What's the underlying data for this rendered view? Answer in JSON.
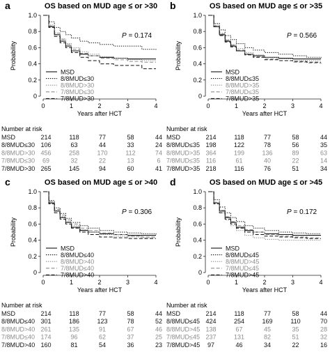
{
  "colors": {
    "black": "#111111",
    "gray": "#8c8c8c",
    "axis": "#222222"
  },
  "chart_data": [
    {
      "type": "line",
      "panel_letter": "a",
      "title": "OS based on MUD age ≤ or >30",
      "xlabel": "Years after HCT",
      "ylabel": "Probability",
      "xlim": [
        0,
        4
      ],
      "ylim": [
        0,
        1.0
      ],
      "xticks": [
        "0",
        "1",
        "2",
        "3",
        "4"
      ],
      "yticks": [
        "0",
        "0.2",
        "0.4",
        "0.6",
        "0.8",
        "1.0"
      ],
      "p_value": "0.174",
      "legend_position": "bottom-right",
      "series": [
        {
          "name": "MSD",
          "style": "solid",
          "color": "black",
          "x": [
            0,
            0.2,
            0.4,
            0.6,
            0.8,
            1.0,
            1.3,
            1.6,
            2.0,
            2.5,
            3.0,
            3.5,
            4.0
          ],
          "y": [
            1.0,
            0.86,
            0.76,
            0.68,
            0.62,
            0.56,
            0.52,
            0.5,
            0.48,
            0.47,
            0.46,
            0.46,
            0.46
          ]
        },
        {
          "name": "8/8MUD≤30",
          "style": "dotted",
          "color": "black",
          "x": [
            0,
            0.2,
            0.4,
            0.6,
            0.8,
            1.0,
            1.3,
            1.6,
            2.0,
            2.5,
            3.0,
            3.5,
            4.0
          ],
          "y": [
            1.0,
            0.92,
            0.85,
            0.8,
            0.76,
            0.72,
            0.68,
            0.66,
            0.64,
            0.62,
            0.62,
            0.58,
            0.57
          ]
        },
        {
          "name": "8/8MUD>30",
          "style": "dotted",
          "color": "gray",
          "x": [
            0,
            0.2,
            0.4,
            0.6,
            0.8,
            1.0,
            1.3,
            1.6,
            2.0,
            2.5,
            3.0,
            3.5,
            4.0
          ],
          "y": [
            1.0,
            0.88,
            0.78,
            0.71,
            0.65,
            0.6,
            0.55,
            0.52,
            0.49,
            0.47,
            0.45,
            0.44,
            0.44
          ]
        },
        {
          "name": "7/8MUD≤30",
          "style": "dashed",
          "color": "gray",
          "x": [
            0,
            0.2,
            0.4,
            0.6,
            0.8,
            1.0,
            1.3,
            1.6,
            2.0,
            2.5,
            3.0,
            3.5,
            4.0
          ],
          "y": [
            1.0,
            0.87,
            0.78,
            0.7,
            0.64,
            0.58,
            0.53,
            0.5,
            0.47,
            0.45,
            0.43,
            0.42,
            0.42
          ]
        },
        {
          "name": "7/8MUD>30",
          "style": "dashed",
          "color": "black",
          "x": [
            0,
            0.2,
            0.4,
            0.6,
            0.8,
            1.0,
            1.3,
            1.6,
            2.0,
            2.5,
            3.0,
            3.5,
            4.0
          ],
          "y": [
            1.0,
            0.85,
            0.74,
            0.66,
            0.6,
            0.54,
            0.48,
            0.44,
            0.4,
            0.38,
            0.38,
            0.34,
            0.34
          ]
        }
      ],
      "risk_table": {
        "heading": "Number at risk",
        "rows": [
          {
            "label": "MSD",
            "color": "black",
            "values": [
              "214",
              "118",
              "77",
              "58",
              "44"
            ]
          },
          {
            "label": "8/8MUD≤30",
            "color": "black",
            "values": [
              "106",
              "63",
              "44",
              "33",
              "24"
            ]
          },
          {
            "label": "8/8MUD>30",
            "color": "gray",
            "values": [
              "456",
              "258",
              "170",
              "112",
              "74"
            ]
          },
          {
            "label": "7/8MUD≤30",
            "color": "gray",
            "values": [
              "69",
              "32",
              "22",
              "13",
              "6"
            ]
          },
          {
            "label": "7/8MUD>30",
            "color": "black",
            "values": [
              "265",
              "145",
              "94",
              "60",
              "41"
            ]
          }
        ]
      }
    },
    {
      "type": "line",
      "panel_letter": "b",
      "title": "OS based on MUD age ≤ or >35",
      "xlabel": "Years after HCT",
      "ylabel": "Probability",
      "xlim": [
        0,
        4
      ],
      "ylim": [
        0,
        1.0
      ],
      "xticks": [
        "0",
        "1",
        "2",
        "3",
        "4"
      ],
      "yticks": [
        "0",
        "0.2",
        "0.4",
        "0.6",
        "0.8",
        "1.0"
      ],
      "p_value": "0.566",
      "legend_position": "bottom-right",
      "series": [
        {
          "name": "MSD",
          "style": "solid",
          "color": "black",
          "x": [
            0,
            0.2,
            0.4,
            0.6,
            0.8,
            1.0,
            1.3,
            1.6,
            2.0,
            2.5,
            3.0,
            3.5,
            4.0
          ],
          "y": [
            1.0,
            0.86,
            0.76,
            0.68,
            0.62,
            0.56,
            0.52,
            0.5,
            0.48,
            0.47,
            0.46,
            0.46,
            0.46
          ]
        },
        {
          "name": "8/8MUD≤35",
          "style": "dotted",
          "color": "black",
          "x": [
            0,
            0.2,
            0.4,
            0.6,
            0.8,
            1.0,
            1.3,
            1.6,
            2.0,
            2.5,
            3.0,
            3.5,
            4.0
          ],
          "y": [
            1.0,
            0.9,
            0.82,
            0.75,
            0.7,
            0.65,
            0.6,
            0.57,
            0.54,
            0.52,
            0.5,
            0.48,
            0.47
          ]
        },
        {
          "name": "8/8MUD>35",
          "style": "dotted",
          "color": "gray",
          "x": [
            0,
            0.2,
            0.4,
            0.6,
            0.8,
            1.0,
            1.3,
            1.6,
            2.0,
            2.5,
            3.0,
            3.5,
            4.0
          ],
          "y": [
            1.0,
            0.88,
            0.78,
            0.7,
            0.64,
            0.59,
            0.54,
            0.51,
            0.48,
            0.46,
            0.44,
            0.44,
            0.44
          ]
        },
        {
          "name": "7/8MUD≤35",
          "style": "dashed",
          "color": "gray",
          "x": [
            0,
            0.2,
            0.4,
            0.6,
            0.8,
            1.0,
            1.3,
            1.6,
            2.0,
            2.5,
            3.0,
            3.5,
            4.0
          ],
          "y": [
            1.0,
            0.87,
            0.77,
            0.69,
            0.63,
            0.57,
            0.52,
            0.49,
            0.46,
            0.44,
            0.42,
            0.41,
            0.4
          ]
        },
        {
          "name": "7/8MUD>35",
          "style": "dashed",
          "color": "black",
          "x": [
            0,
            0.2,
            0.4,
            0.6,
            0.8,
            1.0,
            1.3,
            1.6,
            2.0,
            2.5,
            3.0,
            3.5,
            4.0
          ],
          "y": [
            1.0,
            0.86,
            0.75,
            0.67,
            0.61,
            0.56,
            0.51,
            0.48,
            0.45,
            0.44,
            0.43,
            0.42,
            0.42
          ]
        }
      ],
      "risk_table": {
        "heading": "Number at risk",
        "rows": [
          {
            "label": "MSD",
            "color": "black",
            "values": [
              "214",
              "118",
              "77",
              "58",
              "44"
            ]
          },
          {
            "label": "8/8MUD≤35",
            "color": "black",
            "values": [
              "198",
              "122",
              "78",
              "56",
              "35"
            ]
          },
          {
            "label": "8/8MUD>35",
            "color": "gray",
            "values": [
              "364",
              "199",
              "136",
              "89",
              "63"
            ]
          },
          {
            "label": "7/8MUD≤35",
            "color": "gray",
            "values": [
              "116",
              "61",
              "40",
              "22",
              "14"
            ]
          },
          {
            "label": "7/8MUD>35",
            "color": "black",
            "values": [
              "218",
              "116",
              "76",
              "51",
              "34"
            ]
          }
        ]
      }
    },
    {
      "type": "line",
      "panel_letter": "c",
      "title": "OS based on MUD age ≤ or >40",
      "xlabel": "Years after HCT",
      "ylabel": "Probability",
      "xlim": [
        0,
        4
      ],
      "ylim": [
        0,
        1.0
      ],
      "xticks": [
        "0",
        "1",
        "2",
        "3",
        "4"
      ],
      "yticks": [
        "0",
        "0.2",
        "0.4",
        "0.6",
        "0.8",
        "1.0"
      ],
      "p_value": "0.306",
      "legend_position": "bottom-right",
      "series": [
        {
          "name": "MSD",
          "style": "solid",
          "color": "black",
          "x": [
            0,
            0.2,
            0.4,
            0.6,
            0.8,
            1.0,
            1.3,
            1.6,
            2.0,
            2.5,
            3.0,
            3.5,
            4.0
          ],
          "y": [
            1.0,
            0.86,
            0.76,
            0.68,
            0.62,
            0.56,
            0.52,
            0.5,
            0.48,
            0.47,
            0.46,
            0.46,
            0.46
          ]
        },
        {
          "name": "8/8MUD≤40",
          "style": "dotted",
          "color": "black",
          "x": [
            0,
            0.2,
            0.4,
            0.6,
            0.8,
            1.0,
            1.3,
            1.6,
            2.0,
            2.5,
            3.0,
            3.5,
            4.0
          ],
          "y": [
            1.0,
            0.89,
            0.8,
            0.73,
            0.67,
            0.62,
            0.58,
            0.55,
            0.52,
            0.5,
            0.49,
            0.48,
            0.47
          ]
        },
        {
          "name": "8/8MUD>40",
          "style": "dotted",
          "color": "gray",
          "x": [
            0,
            0.2,
            0.4,
            0.6,
            0.8,
            1.0,
            1.3,
            1.6,
            2.0,
            2.5,
            3.0,
            3.5,
            4.0
          ],
          "y": [
            1.0,
            0.87,
            0.77,
            0.69,
            0.63,
            0.58,
            0.53,
            0.5,
            0.47,
            0.45,
            0.44,
            0.43,
            0.43
          ]
        },
        {
          "name": "7/8MUD≤40",
          "style": "dashed",
          "color": "gray",
          "x": [
            0,
            0.2,
            0.4,
            0.6,
            0.8,
            1.0,
            1.3,
            1.6,
            2.0,
            2.5,
            3.0,
            3.5,
            4.0
          ],
          "y": [
            1.0,
            0.88,
            0.78,
            0.71,
            0.65,
            0.6,
            0.55,
            0.52,
            0.49,
            0.47,
            0.45,
            0.44,
            0.44
          ]
        },
        {
          "name": "7/8MUD>40",
          "style": "dashed",
          "color": "black",
          "x": [
            0,
            0.2,
            0.4,
            0.6,
            0.8,
            1.0,
            1.3,
            1.6,
            2.0,
            2.5,
            3.0,
            3.5,
            4.0
          ],
          "y": [
            1.0,
            0.85,
            0.74,
            0.66,
            0.6,
            0.55,
            0.5,
            0.47,
            0.44,
            0.43,
            0.42,
            0.42,
            0.42
          ]
        }
      ],
      "risk_table": {
        "heading": "Number at risk",
        "rows": [
          {
            "label": "MSD",
            "color": "black",
            "values": [
              "214",
              "118",
              "77",
              "58",
              "44"
            ]
          },
          {
            "label": "8/8MUD≤40",
            "color": "black",
            "values": [
              "301",
              "186",
              "123",
              "78",
              "52"
            ]
          },
          {
            "label": "8/8MUD>40",
            "color": "gray",
            "values": [
              "261",
              "135",
              "91",
              "67",
              "46"
            ]
          },
          {
            "label": "7/8MUD≤40",
            "color": "gray",
            "values": [
              "174",
              "96",
              "62",
              "37",
              "25"
            ]
          },
          {
            "label": "7/8MUD>40",
            "color": "black",
            "values": [
              "160",
              "81",
              "54",
              "36",
              "23"
            ]
          }
        ]
      }
    },
    {
      "type": "line",
      "panel_letter": "d",
      "title": "OS based on MUD age ≤ or >45",
      "xlabel": "Years after HCT",
      "ylabel": "Probability",
      "xlim": [
        0,
        4
      ],
      "ylim": [
        0,
        1.0
      ],
      "xticks": [
        "0",
        "1",
        "2",
        "3",
        "4"
      ],
      "yticks": [
        "0",
        "0.2",
        "0.4",
        "0.6",
        "0.8",
        "1.0"
      ],
      "p_value": "0.172",
      "legend_position": "bottom-right",
      "series": [
        {
          "name": "MSD",
          "style": "solid",
          "color": "black",
          "x": [
            0,
            0.2,
            0.4,
            0.6,
            0.8,
            1.0,
            1.3,
            1.6,
            2.0,
            2.5,
            3.0,
            3.5,
            4.0
          ],
          "y": [
            1.0,
            0.86,
            0.76,
            0.68,
            0.62,
            0.56,
            0.52,
            0.5,
            0.48,
            0.47,
            0.46,
            0.46,
            0.46
          ]
        },
        {
          "name": "8/8MUD≤45",
          "style": "dotted",
          "color": "black",
          "x": [
            0,
            0.2,
            0.4,
            0.6,
            0.8,
            1.0,
            1.3,
            1.6,
            2.0,
            2.5,
            3.0,
            3.5,
            4.0
          ],
          "y": [
            1.0,
            0.9,
            0.81,
            0.74,
            0.68,
            0.63,
            0.58,
            0.55,
            0.52,
            0.5,
            0.49,
            0.48,
            0.48
          ]
        },
        {
          "name": "8/8MUD>45",
          "style": "dotted",
          "color": "gray",
          "x": [
            0,
            0.2,
            0.4,
            0.6,
            0.8,
            1.0,
            1.3,
            1.6,
            2.0,
            2.5,
            3.0,
            3.5,
            4.0
          ],
          "y": [
            1.0,
            0.86,
            0.74,
            0.65,
            0.58,
            0.52,
            0.46,
            0.43,
            0.41,
            0.4,
            0.4,
            0.4,
            0.4
          ]
        },
        {
          "name": "7/8MUD≤45",
          "style": "dashed",
          "color": "gray",
          "x": [
            0,
            0.2,
            0.4,
            0.6,
            0.8,
            1.0,
            1.3,
            1.6,
            2.0,
            2.5,
            3.0,
            3.5,
            4.0
          ],
          "y": [
            1.0,
            0.87,
            0.77,
            0.69,
            0.63,
            0.58,
            0.53,
            0.5,
            0.47,
            0.45,
            0.44,
            0.43,
            0.43
          ]
        },
        {
          "name": "7/8MUD>45",
          "style": "dashed",
          "color": "black",
          "x": [
            0,
            0.2,
            0.4,
            0.6,
            0.8,
            1.0,
            1.3,
            1.6,
            2.0,
            2.5,
            3.0,
            3.5,
            4.0
          ],
          "y": [
            1.0,
            0.85,
            0.74,
            0.66,
            0.6,
            0.55,
            0.5,
            0.47,
            0.45,
            0.44,
            0.43,
            0.42,
            0.42
          ]
        }
      ],
      "risk_table": {
        "heading": "Number at risk",
        "rows": [
          {
            "label": "MSD",
            "color": "black",
            "values": [
              "214",
              "118",
              "77",
              "58",
              "44"
            ]
          },
          {
            "label": "8/8MUD≤45",
            "color": "black",
            "values": [
              "424",
              "254",
              "169",
              "110",
              "70"
            ]
          },
          {
            "label": "8/8MUD>45",
            "color": "gray",
            "values": [
              "138",
              "67",
              "45",
              "35",
              "28"
            ]
          },
          {
            "label": "7/8MUD≤45",
            "color": "gray",
            "values": [
              "237",
              "131",
              "82",
              "51",
              "32"
            ]
          },
          {
            "label": "7/8MUD>45",
            "color": "black",
            "values": [
              "97",
              "46",
              "34",
              "22",
              "16"
            ]
          }
        ]
      }
    }
  ]
}
